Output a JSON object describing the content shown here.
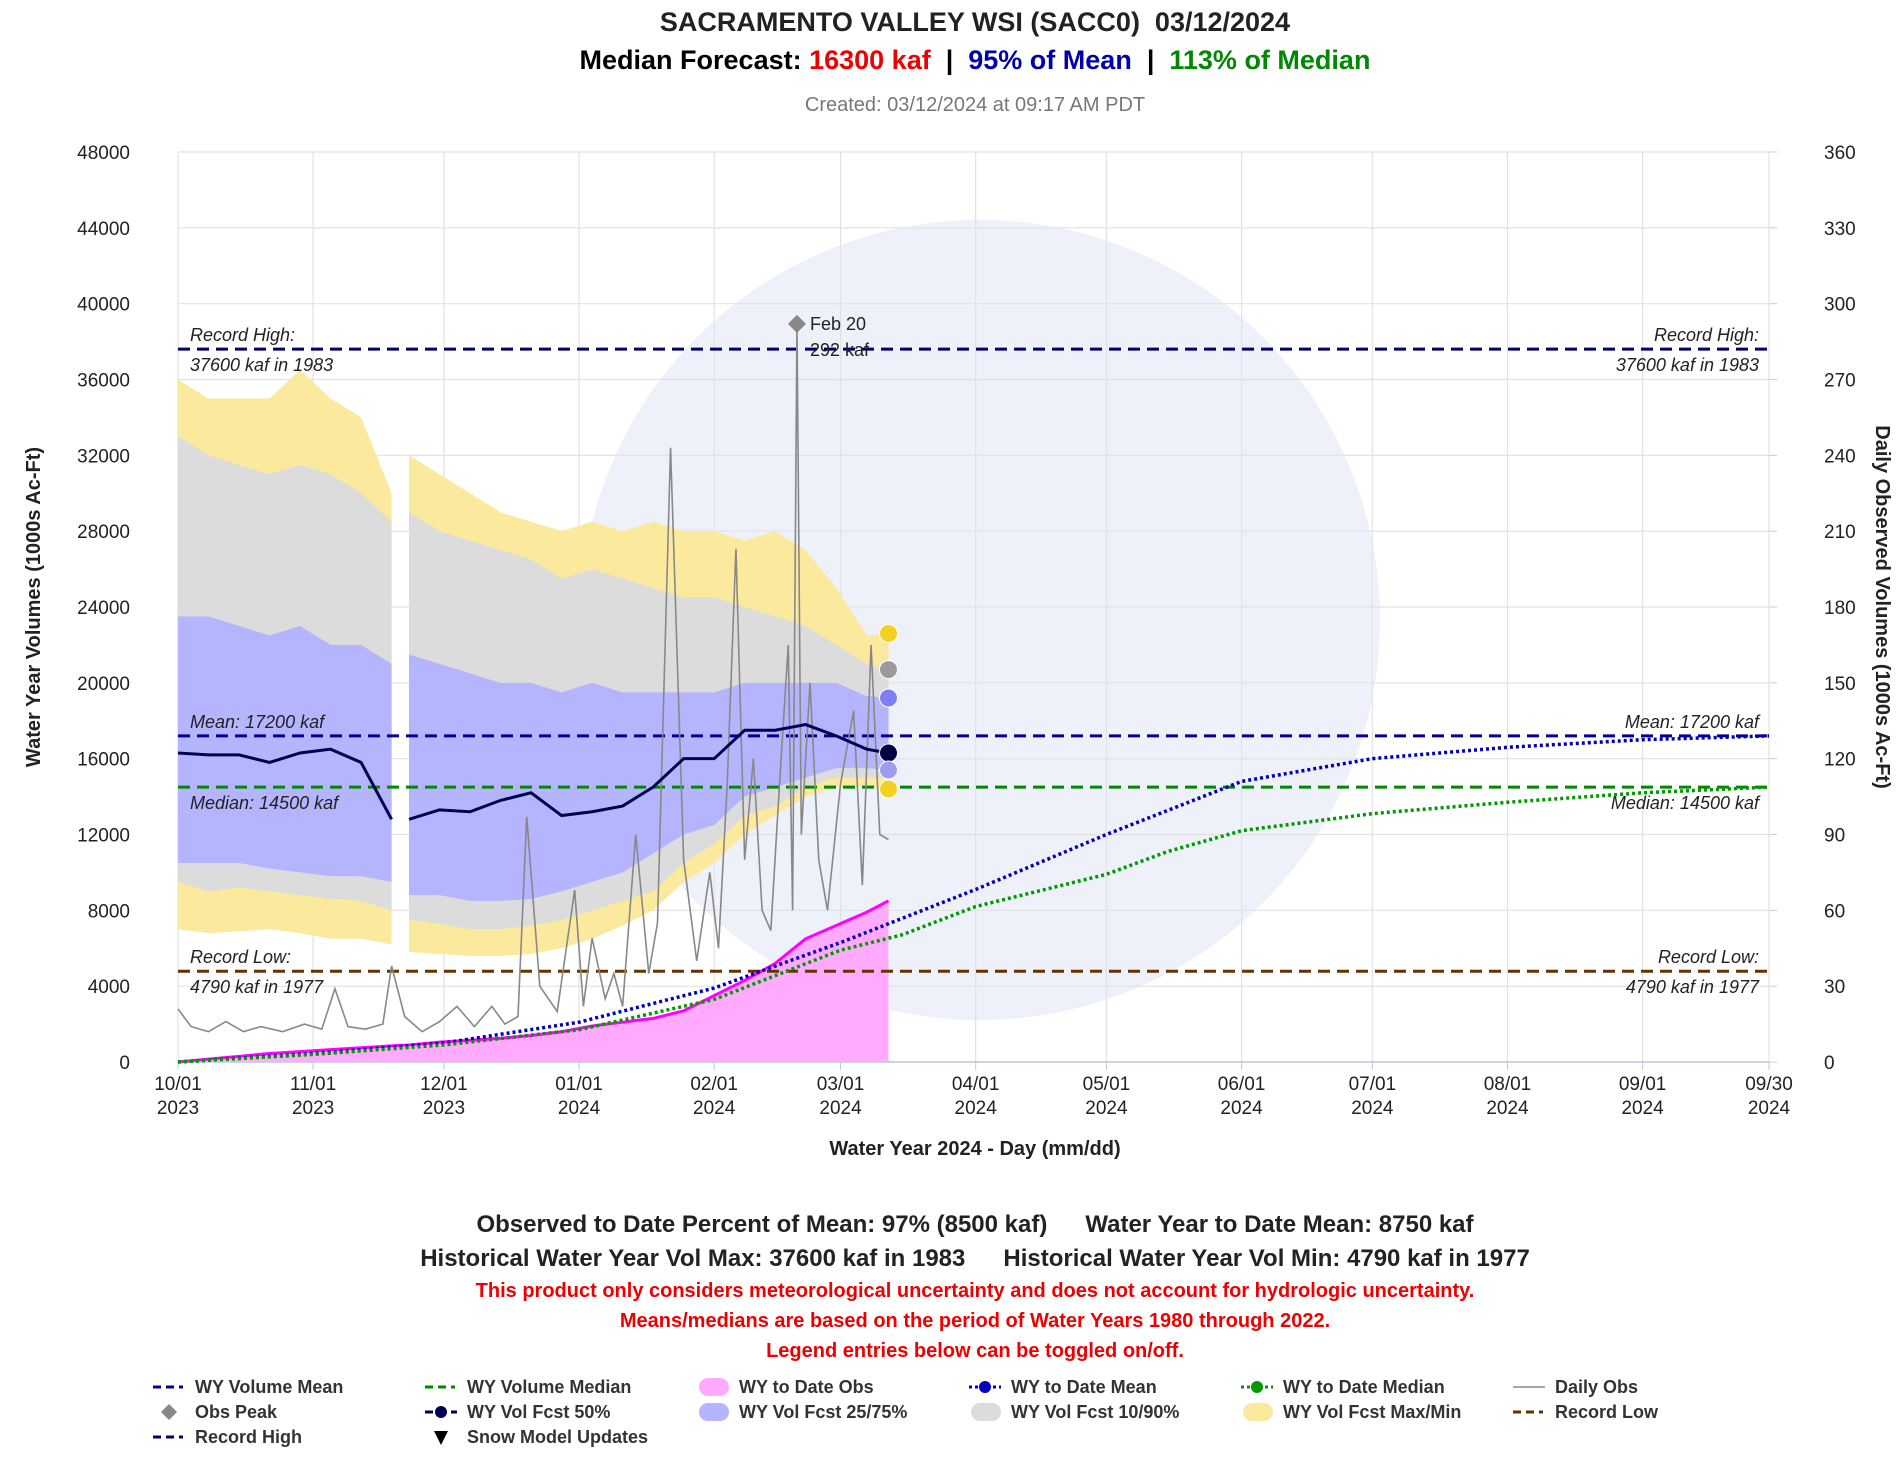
{
  "chart_data": {
    "type": "line",
    "title": "SACRAMENTO VALLEY WSI (SACC0)  03/12/2024",
    "subtitle": [
      {
        "text": "Median Forecast: ",
        "color": "#000000"
      },
      {
        "text": "16300 kaf",
        "color": "#ee0000"
      },
      {
        "text": "  |  ",
        "color": "#000000"
      },
      {
        "text": "95% of Mean",
        "color": "#0000aa"
      },
      {
        "text": "  |  ",
        "color": "#000000"
      },
      {
        "text": "113% of Median",
        "color": "#008800"
      }
    ],
    "created": "Created: 03/12/2024 at 09:17 AM PDT",
    "x_label": "Water Year 2024 - Day (mm/dd)",
    "y_label": "Water Year Volumes (1000s Ac-Ft)",
    "y2_label": "Daily Observed Volumes (1000s Ac-Ft)",
    "xlim": [
      "2023-10-01",
      "2024-09-30"
    ],
    "xticks": [
      {
        "value": "2023-10-01",
        "label": "10/01\n2023"
      },
      {
        "value": "2023-11-01",
        "label": "11/01\n2023"
      },
      {
        "value": "2023-12-01",
        "label": "12/01\n2023"
      },
      {
        "value": "2024-01-01",
        "label": "01/01\n2024"
      },
      {
        "value": "2024-02-01",
        "label": "02/01\n2024"
      },
      {
        "value": "2024-03-01",
        "label": "03/01\n2024"
      },
      {
        "value": "2024-04-01",
        "label": "04/01\n2024"
      },
      {
        "value": "2024-05-01",
        "label": "05/01\n2024"
      },
      {
        "value": "2024-06-01",
        "label": "06/01\n2024"
      },
      {
        "value": "2024-07-01",
        "label": "07/01\n2024"
      },
      {
        "value": "2024-08-01",
        "label": "08/01\n2024"
      },
      {
        "value": "2024-09-01",
        "label": "09/01\n2024"
      },
      {
        "value": "2024-09-30",
        "label": "09/30\n2024"
      }
    ],
    "ylim": [
      0,
      48000
    ],
    "yticks": [
      0,
      4000,
      8000,
      12000,
      16000,
      20000,
      24000,
      28000,
      32000,
      36000,
      40000,
      44000,
      48000
    ],
    "y2lim": [
      0,
      360
    ],
    "y2ticks": [
      0,
      30,
      60,
      90,
      120,
      150,
      180,
      210,
      240,
      270,
      300,
      330,
      360
    ],
    "grid": true,
    "series": [
      {
        "name": "WY Volume Mean",
        "kind": "hline",
        "color": "#000099",
        "value": 17200,
        "label_lines": [
          "Mean: 17200 kaf"
        ]
      },
      {
        "name": "WY Volume Median",
        "kind": "hline",
        "color": "#008800",
        "value": 14500,
        "label_lines": [
          "Median: 14500 kaf"
        ]
      },
      {
        "name": "WY to Date Obs",
        "kind": "area",
        "color": "#ff00ff",
        "fill": "#ffaaff",
        "x": [
          "2023-10-01",
          "2023-10-08",
          "2023-10-15",
          "2023-10-22",
          "2023-10-29",
          "2023-11-05",
          "2023-11-12",
          "2023-11-19",
          "2023-11-21",
          "2023-11-23",
          "2023-11-30",
          "2023-12-07",
          "2023-12-14",
          "2023-12-21",
          "2023-12-28",
          "2024-01-04",
          "2024-01-11",
          "2024-01-18",
          "2024-01-25",
          "2024-02-01",
          "2024-02-08",
          "2024-02-15",
          "2024-02-22",
          "2024-02-29",
          "2024-03-07",
          "2024-03-12"
        ],
        "values": [
          0,
          150,
          300,
          450,
          550,
          650,
          750,
          850,
          880,
          900,
          1050,
          1150,
          1250,
          1400,
          1600,
          1900,
          2100,
          2300,
          2700,
          3500,
          4300,
          5200,
          6500,
          7200,
          7900,
          8500
        ]
      },
      {
        "name": "WY to Date Mean",
        "kind": "line",
        "dash": "dot",
        "color": "#0000bb",
        "x": [
          "2023-10-01",
          "2023-11-01",
          "2023-12-01",
          "2024-01-01",
          "2024-02-01",
          "2024-03-01",
          "2024-04-01",
          "2024-05-01",
          "2024-06-01",
          "2024-07-01",
          "2024-08-01",
          "2024-09-01",
          "2024-09-30"
        ],
        "values": [
          0,
          450,
          1000,
          2100,
          3900,
          6300,
          9100,
          12000,
          14800,
          16000,
          16600,
          17000,
          17200
        ]
      },
      {
        "name": "WY to Date Median",
        "kind": "line",
        "dash": "dot",
        "color": "#009900",
        "x": [
          "2023-10-01",
          "2023-11-01",
          "2023-12-01",
          "2024-01-01",
          "2024-02-01",
          "2024-03-01",
          "2024-03-15",
          "2024-04-01",
          "2024-05-01",
          "2024-05-15",
          "2024-06-01",
          "2024-07-01",
          "2024-08-01",
          "2024-09-01",
          "2024-09-30"
        ],
        "values": [
          0,
          400,
          900,
          1700,
          3300,
          5900,
          6700,
          8200,
          9900,
          11100,
          12200,
          13100,
          13700,
          14200,
          14500
        ]
      },
      {
        "name": "Daily Obs",
        "kind": "line",
        "axis": "y2",
        "color": "#888888",
        "x": [
          "2023-10-01",
          "2023-10-04",
          "2023-10-08",
          "2023-10-12",
          "2023-10-16",
          "2023-10-20",
          "2023-10-25",
          "2023-10-30",
          "2023-11-03",
          "2023-11-06",
          "2023-11-09",
          "2023-11-13",
          "2023-11-17",
          "2023-11-19",
          "2023-11-22",
          "2023-11-26",
          "2023-11-30",
          "2023-12-04",
          "2023-12-08",
          "2023-12-12",
          "2023-12-15",
          "2023-12-18",
          "2023-12-20",
          "2023-12-23",
          "2023-12-27",
          "2023-12-31",
          "2024-01-02",
          "2024-01-04",
          "2024-01-07",
          "2024-01-09",
          "2024-01-11",
          "2024-01-14",
          "2024-01-17",
          "2024-01-19",
          "2024-01-22",
          "2024-01-25",
          "2024-01-28",
          "2024-01-31",
          "2024-02-02",
          "2024-02-04",
          "2024-02-06",
          "2024-02-08",
          "2024-02-10",
          "2024-02-12",
          "2024-02-14",
          "2024-02-16",
          "2024-02-18",
          "2024-02-19",
          "2024-02-20",
          "2024-02-21",
          "2024-02-23",
          "2024-02-25",
          "2024-02-27",
          "2024-03-01",
          "2024-03-04",
          "2024-03-06",
          "2024-03-08",
          "2024-03-10",
          "2024-03-12"
        ],
        "values": [
          21,
          14,
          12,
          16,
          12,
          14,
          12,
          15,
          13,
          29,
          14,
          13,
          15,
          38,
          18,
          12,
          16,
          22,
          14,
          22,
          15,
          18,
          97,
          30,
          20,
          68,
          22,
          49,
          25,
          35,
          22,
          90,
          35,
          55,
          243,
          80,
          40,
          75,
          45,
          110,
          203,
          80,
          120,
          60,
          52,
          110,
          165,
          60,
          292,
          90,
          150,
          80,
          60,
          110,
          139,
          70,
          165,
          90,
          88
        ]
      },
      {
        "name": "Obs Peak",
        "kind": "scatter",
        "axis": "y2",
        "color": "#888888",
        "symbol": "diamond",
        "x": [
          "2024-02-20"
        ],
        "values": [
          292
        ],
        "x_labels": [
          "Feb 20"
        ],
        "value_labels": [
          "292 kaf"
        ]
      },
      {
        "name": "WY Vol Fcst 50%",
        "kind": "line",
        "color": "#000055",
        "x": [
          "2023-10-01",
          "2023-10-08",
          "2023-10-15",
          "2023-10-22",
          "2023-10-29",
          "2023-11-05",
          "2023-11-12",
          "2023-11-19",
          "2023-11-21",
          "2023-11-23",
          "2023-11-30",
          "2023-12-07",
          "2023-12-14",
          "2023-12-21",
          "2023-12-28",
          "2024-01-04",
          "2024-01-11",
          "2024-01-18",
          "2024-01-25",
          "2024-02-01",
          "2024-02-08",
          "2024-02-15",
          "2024-02-22",
          "2024-02-29",
          "2024-03-07",
          "2024-03-12"
        ],
        "values": [
          16300,
          16200,
          16200,
          15800,
          16300,
          16500,
          15800,
          12800,
          null,
          12800,
          13300,
          13200,
          13800,
          14200,
          13000,
          13200,
          13500,
          14500,
          16000,
          16000,
          17500,
          17500,
          17800,
          17200,
          16500,
          16300
        ]
      },
      {
        "name": "WY Vol Fcst 25/75%",
        "kind": "band",
        "color": "#b4b4ff",
        "x": [
          "2023-10-01",
          "2023-10-08",
          "2023-10-15",
          "2023-10-22",
          "2023-10-29",
          "2023-11-05",
          "2023-11-12",
          "2023-11-19",
          "2023-11-21",
          "2023-11-23",
          "2023-11-30",
          "2023-12-07",
          "2023-12-14",
          "2023-12-21",
          "2023-12-28",
          "2024-01-04",
          "2024-01-11",
          "2024-01-18",
          "2024-01-25",
          "2024-02-01",
          "2024-02-08",
          "2024-02-15",
          "2024-02-22",
          "2024-02-29",
          "2024-03-07",
          "2024-03-12"
        ],
        "low": [
          10500,
          10500,
          10500,
          10200,
          10000,
          9800,
          9800,
          9500,
          null,
          8800,
          8800,
          8500,
          8500,
          8600,
          9000,
          9500,
          10000,
          11000,
          12000,
          12500,
          14000,
          14500,
          15000,
          15500,
          15500,
          15400
        ],
        "high": [
          23500,
          23500,
          23000,
          22500,
          23000,
          22000,
          22000,
          21000,
          null,
          21500,
          21000,
          20500,
          20000,
          20000,
          19500,
          20000,
          19500,
          19500,
          19500,
          19500,
          20000,
          20000,
          20000,
          20000,
          19300,
          19200
        ]
      },
      {
        "name": "WY Vol Fcst 10/90%",
        "kind": "band",
        "color": "#dcdcdc",
        "x": [
          "2023-10-01",
          "2023-10-08",
          "2023-10-15",
          "2023-10-22",
          "2023-10-29",
          "2023-11-05",
          "2023-11-12",
          "2023-11-19",
          "2023-11-21",
          "2023-11-23",
          "2023-11-30",
          "2023-12-07",
          "2023-12-14",
          "2023-12-21",
          "2023-12-28",
          "2024-01-04",
          "2024-01-11",
          "2024-01-18",
          "2024-01-25",
          "2024-02-01",
          "2024-02-08",
          "2024-02-15",
          "2024-02-22",
          "2024-02-29",
          "2024-03-07",
          "2024-03-12"
        ],
        "low": [
          9500,
          9000,
          9200,
          9000,
          8800,
          8600,
          8500,
          8000,
          null,
          7500,
          7300,
          7000,
          7000,
          7200,
          7500,
          8000,
          8500,
          9000,
          10500,
          11500,
          13000,
          13500,
          14500,
          15000,
          15000,
          15000
        ],
        "high": [
          33000,
          32000,
          31500,
          31000,
          31500,
          31000,
          30000,
          28500,
          null,
          29000,
          28000,
          27500,
          27000,
          26500,
          25500,
          26000,
          25500,
          25000,
          24500,
          24500,
          24000,
          23500,
          23000,
          22000,
          21000,
          20700
        ]
      },
      {
        "name": "WY Vol Fcst Max/Min",
        "kind": "band",
        "color": "#fbe99e",
        "x": [
          "2023-10-01",
          "2023-10-08",
          "2023-10-15",
          "2023-10-22",
          "2023-10-29",
          "2023-11-05",
          "2023-11-12",
          "2023-11-19",
          "2023-11-21",
          "2023-11-23",
          "2023-11-30",
          "2023-12-07",
          "2023-12-14",
          "2023-12-21",
          "2023-12-28",
          "2024-01-04",
          "2024-01-11",
          "2024-01-18",
          "2024-01-25",
          "2024-02-01",
          "2024-02-08",
          "2024-02-15",
          "2024-02-22",
          "2024-02-29",
          "2024-03-07",
          "2024-03-12"
        ],
        "low": [
          7000,
          6800,
          6900,
          7000,
          6800,
          6500,
          6500,
          6200,
          null,
          5800,
          5700,
          5600,
          5600,
          5700,
          6000,
          6500,
          7200,
          8000,
          9500,
          10500,
          12000,
          13000,
          14000,
          14500,
          14500,
          14400
        ],
        "high": [
          36000,
          35000,
          35000,
          35000,
          36500,
          35000,
          34000,
          30000,
          null,
          32000,
          31000,
          30000,
          29000,
          28500,
          28000,
          28500,
          28000,
          28500,
          28000,
          28000,
          27500,
          28000,
          27000,
          25000,
          22500,
          22600
        ]
      },
      {
        "name": "Record Low",
        "kind": "hline",
        "color": "#663300",
        "value": 4790,
        "label_lines": [
          "Record Low:",
          "4790 kaf in 1977"
        ]
      },
      {
        "name": "Record High",
        "kind": "hline",
        "color": "#000066",
        "value": 37600,
        "label_lines": [
          "Record High:",
          "37600 kaf in 1983"
        ]
      },
      {
        "name": "Snow Model Updates",
        "kind": "scatter",
        "color": "#000000",
        "symbol": "triangle",
        "x": [],
        "values": []
      }
    ],
    "forecast_markers": {
      "x": "2024-03-12",
      "values": [
        22600,
        20700,
        19200,
        16300,
        15400,
        14400
      ],
      "colors": [
        "#f5d020",
        "#9a9a9a",
        "#7f7ff5",
        "#000044",
        "#9c9cf0",
        "#f5d020"
      ]
    },
    "footer": [
      [
        "Observed to Date Percent of Mean: 97% (8500 kaf)",
        "Water Year to Date Mean: 8750 kaf"
      ],
      [
        "Historical Water Year Vol Max: 37600 kaf in 1983",
        "Historical Water Year Vol Min: 4790 kaf in 1977"
      ]
    ],
    "notes": [
      "This product only considers meteorological uncertainty and does not account for hydrologic uncertainty.",
      "Means/medians are based on the period of Water Years 1980 through 2022.",
      "Legend entries below can be toggled on/off."
    ],
    "notes_color": "#ee0000"
  }
}
